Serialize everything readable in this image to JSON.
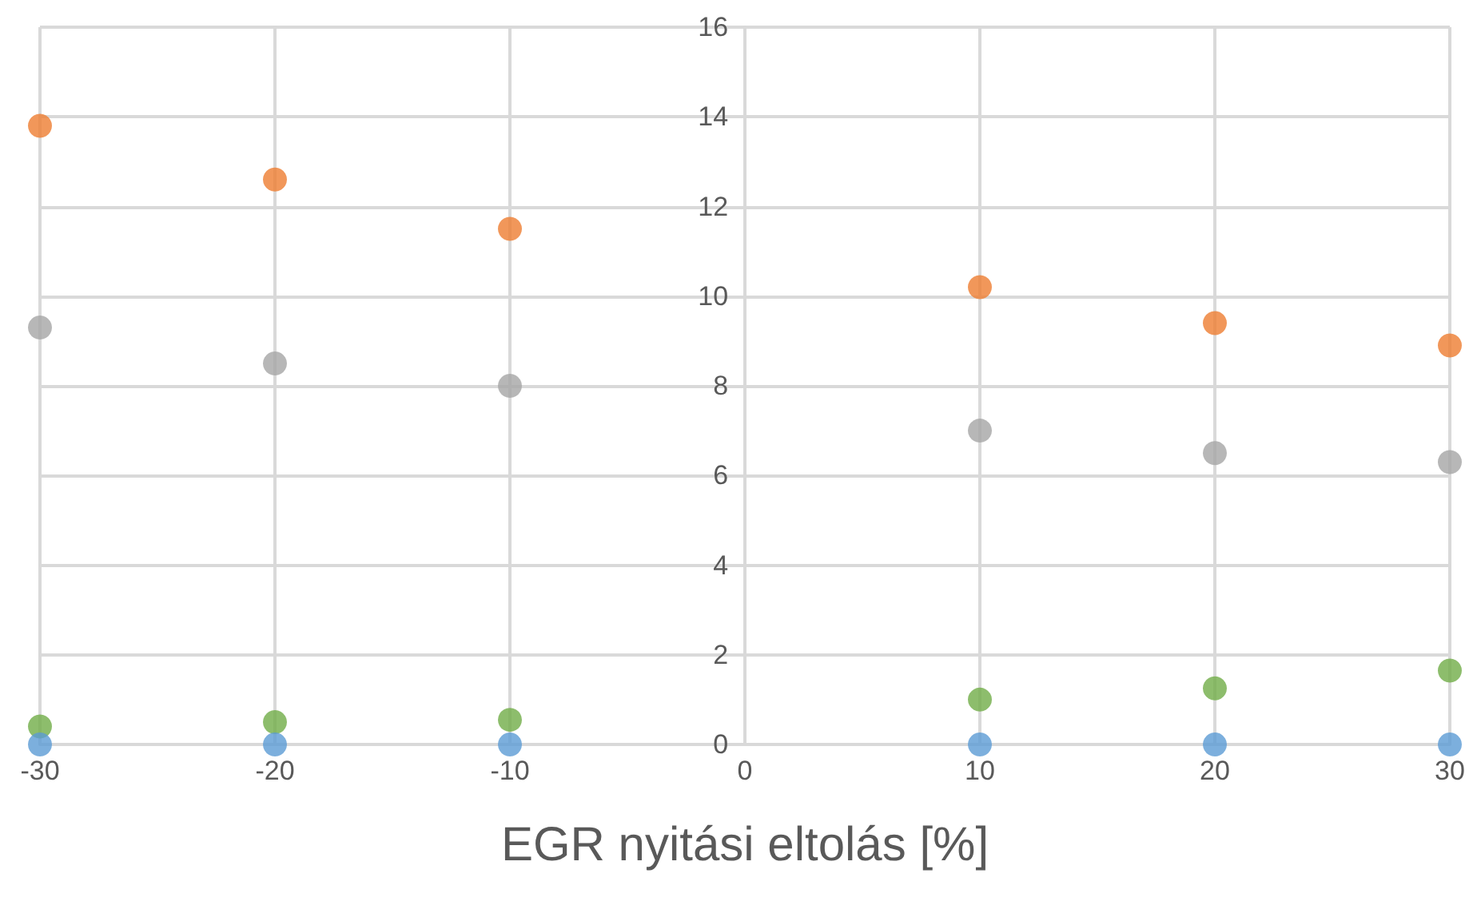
{
  "chart_data": {
    "type": "scatter",
    "xlabel": "EGR nyitási eltolás [%]",
    "x": [
      -30,
      -20,
      -10,
      10,
      20,
      30
    ],
    "series": [
      {
        "color": "#ed7d31",
        "values": [
          13.8,
          12.6,
          11.5,
          10.2,
          9.4,
          8.9
        ]
      },
      {
        "color": "#a5a5a5",
        "values": [
          9.3,
          8.5,
          8.0,
          7.0,
          6.5,
          6.3
        ]
      },
      {
        "color": "#70ad47",
        "values": [
          0.4,
          0.5,
          0.55,
          1.0,
          1.25,
          1.65
        ]
      },
      {
        "color": "#5b9bd5",
        "values": [
          0,
          0,
          0,
          0,
          0,
          0
        ]
      }
    ],
    "xlim": [
      -30,
      30
    ],
    "xticks": [
      -30,
      -20,
      -10,
      0,
      10,
      20,
      30
    ],
    "ylim": [
      0,
      16
    ],
    "yticks": [
      0,
      2,
      4,
      6,
      8,
      10,
      12,
      14,
      16
    ],
    "grid": true,
    "marker": "circle"
  }
}
